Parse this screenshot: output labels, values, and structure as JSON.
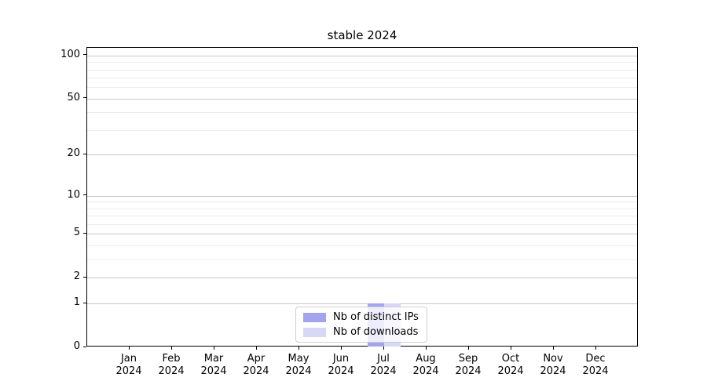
{
  "title": "stable 2024",
  "colors": {
    "distinct_ips": "#a3a3ee",
    "downloads": "#d7d7f6",
    "grid_major": "#c8c8c8",
    "grid_minor": "#ececec",
    "spine": "#000000",
    "background": "#ffffff"
  },
  "chart_data": {
    "type": "bar",
    "title": "stable 2024",
    "scale": "log1p",
    "categories": [
      "Jan",
      "Feb",
      "Mar",
      "Apr",
      "May",
      "Jun",
      "Jul",
      "Aug",
      "Sep",
      "Oct",
      "Nov",
      "Dec"
    ],
    "year_label": "2024",
    "series": [
      {
        "name": "Nb of distinct IPs",
        "color": "#a3a3ee",
        "values": [
          0,
          0,
          0,
          0,
          0,
          0,
          1,
          0,
          0,
          0,
          0,
          0
        ]
      },
      {
        "name": "Nb of downloads",
        "color": "#d7d7f6",
        "values": [
          0,
          0,
          0,
          0,
          0,
          0,
          1,
          0,
          0,
          0,
          0,
          0
        ]
      }
    ],
    "y_major_ticks": [
      0,
      1,
      2,
      5,
      10,
      20,
      50,
      100
    ],
    "y_minor_ticks": [
      3,
      4,
      6,
      7,
      8,
      9,
      30,
      40,
      60,
      70,
      80,
      90
    ],
    "ylim": [
      0,
      113
    ],
    "xlabel": "",
    "ylabel": "",
    "grid": true,
    "legend_position": "lower center"
  },
  "legend": {
    "items": [
      {
        "label": "Nb of distinct IPs"
      },
      {
        "label": "Nb of downloads"
      }
    ]
  }
}
